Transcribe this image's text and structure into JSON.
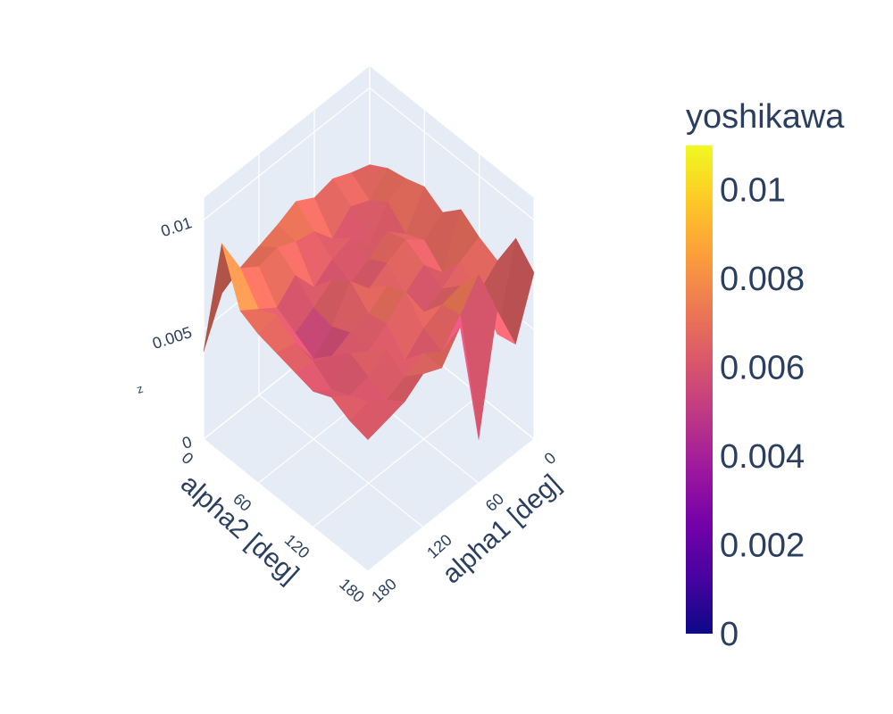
{
  "chart_data": {
    "type": "surface",
    "xlabel": "alpha1 [deg]",
    "ylabel": "alpha2 [deg]",
    "zlabel": "z",
    "x_ticks": [
      "0",
      "60",
      "120",
      "180"
    ],
    "y_ticks": [
      "0",
      "60",
      "120",
      "180"
    ],
    "z_ticks": [
      "0",
      "0.005",
      "0.01"
    ],
    "x": [
      0,
      20,
      40,
      60,
      80,
      100,
      120,
      140,
      160,
      180
    ],
    "y": [
      0,
      20,
      40,
      60,
      80,
      100,
      120,
      140,
      160,
      180
    ],
    "z": [
      [
        0.0065,
        0.0068,
        0.0072,
        0.007,
        0.0075,
        0.0071,
        0.0068,
        0.0065,
        0.006,
        0.004
      ],
      [
        0.007,
        0.0062,
        0.0066,
        0.0058,
        0.0068,
        0.007,
        0.0074,
        0.0072,
        0.0078,
        0.0096
      ],
      [
        0.0072,
        0.0068,
        0.0055,
        0.0065,
        0.0062,
        0.0056,
        0.0068,
        0.006,
        0.0066,
        0.0072
      ],
      [
        0.0075,
        0.006,
        0.0068,
        0.0062,
        0.0058,
        0.0066,
        0.006,
        0.0055,
        0.007,
        0.0068
      ],
      [
        0.007,
        0.0064,
        0.0071,
        0.0067,
        0.0062,
        0.0072,
        0.0058,
        0.005,
        0.0064,
        0.0066
      ],
      [
        0.0078,
        0.0056,
        0.0066,
        0.006,
        0.007,
        0.0064,
        0.0062,
        0.0058,
        0.0062,
        0.0064
      ],
      [
        0.0072,
        0.0068,
        0.0062,
        0.0058,
        0.0074,
        0.0066,
        0.006,
        0.0066,
        0.0056,
        0.0062
      ],
      [
        0.0068,
        0.006,
        0.007,
        0.0068,
        0.0064,
        0.0056,
        0.0068,
        0.0062,
        0.006,
        0.0066
      ],
      [
        0.0085,
        0.0048,
        0.0082,
        0.007,
        0.006,
        0.0066,
        0.0062,
        0.0058,
        0.0064,
        0.0062
      ],
      [
        0.0076,
        0.005,
        0.0072,
        0.002,
        0.0078,
        0.0066,
        0.007,
        0.0064,
        0.0062,
        0.006
      ]
    ],
    "zlim": [
      0,
      0.011
    ],
    "colorbar": {
      "title": "yoshikawa",
      "tick_values": [
        0,
        0.002,
        0.004,
        0.006,
        0.008,
        0.01
      ],
      "tick_labels": [
        "0",
        "0.002",
        "0.004",
        "0.006",
        "0.008",
        "0.01"
      ],
      "range": [
        0,
        0.011
      ]
    },
    "colorscale": [
      "#0d0887",
      "#46039f",
      "#7201a8",
      "#9c179e",
      "#bd3786",
      "#d8576b",
      "#ed7953",
      "#fb9f3a",
      "#fdca26",
      "#f0f921"
    ]
  },
  "colors": {
    "axis_text": "#2a3f5f",
    "scene_background": "#e5ecf6",
    "grid": "#ffffff"
  }
}
